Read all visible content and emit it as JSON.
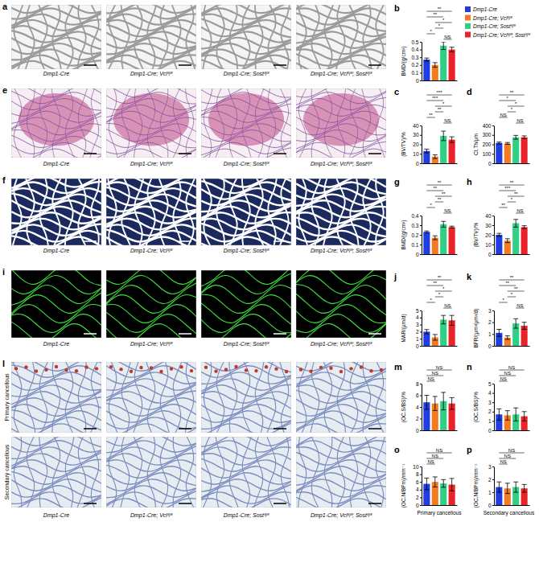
{
  "chart_data": [
    {
      "panel": "b",
      "type": "bar",
      "y_label": "BMD/(g/cm³)",
      "categories": [
        "Dmp1-Cre",
        "Dmp1-Cre; Vclᶠˡ/ᶠˡ",
        "Dmp1-Cre; Sostᶠˡ/ᶠˡ",
        "Dmp1-Cre; Vclᶠˡ/ᶠˡ; Sostᶠˡ/ᶠˡ"
      ],
      "legend": "right",
      "colors": [
        "#1f3de0",
        "#f47a20",
        "#2fcf86",
        "#e8242a"
      ],
      "values": [
        0.27,
        0.2,
        0.45,
        0.4
      ],
      "errors": [
        0.02,
        0.03,
        0.05,
        0.03
      ],
      "ylim": [
        0,
        0.5
      ],
      "yticks": [
        0,
        0.1,
        0.2,
        0.3,
        0.4,
        0.5
      ],
      "annotations": [
        {
          "between": [
            2,
            3
          ],
          "text": "NS"
        },
        {
          "between": [
            0,
            1
          ],
          "text": "*"
        },
        {
          "between": [
            1,
            2
          ],
          "text": "*"
        },
        {
          "between": [
            1,
            3
          ],
          "text": "*"
        },
        {
          "between": [
            0,
            2
          ],
          "text": "**"
        },
        {
          "between": [
            0,
            3
          ],
          "text": "**"
        }
      ]
    },
    {
      "panel": "c",
      "type": "bar",
      "y_label": "(BV/TV)/%",
      "categories": [
        null,
        null,
        null,
        null
      ],
      "colors": [
        "#1f3de0",
        "#f47a20",
        "#2fcf86",
        "#e8242a"
      ],
      "values": [
        13,
        7,
        29,
        25
      ],
      "errors": [
        2,
        2,
        5,
        3
      ],
      "ylim": [
        0,
        40
      ],
      "yticks": [
        0,
        10,
        20,
        30,
        40
      ],
      "annotations": [
        {
          "between": [
            2,
            3
          ],
          "text": "NS"
        },
        {
          "between": [
            0,
            1
          ],
          "text": "**"
        },
        {
          "between": [
            1,
            2
          ],
          "text": "**"
        },
        {
          "between": [
            1,
            3
          ],
          "text": "*"
        },
        {
          "between": [
            0,
            2
          ],
          "text": "***"
        },
        {
          "between": [
            0,
            3
          ],
          "text": "***"
        }
      ]
    },
    {
      "panel": "d",
      "type": "bar",
      "y_label": "Ct.Th/μm",
      "categories": [
        null,
        null,
        null,
        null
      ],
      "colors": [
        "#1f3de0",
        "#f47a20",
        "#2fcf86",
        "#e8242a"
      ],
      "values": [
        215,
        210,
        275,
        275
      ],
      "errors": [
        10,
        10,
        20,
        15
      ],
      "ylim": [
        0,
        400
      ],
      "yticks": [
        0,
        100,
        200,
        300,
        400
      ],
      "annotations": [
        {
          "between": [
            2,
            3
          ],
          "text": "NS"
        },
        {
          "between": [
            0,
            1
          ],
          "text": "NS"
        },
        {
          "between": [
            1,
            2
          ],
          "text": "*"
        },
        {
          "between": [
            1,
            3
          ],
          "text": "*"
        },
        {
          "between": [
            0,
            2
          ],
          "text": "*"
        },
        {
          "between": [
            0,
            3
          ],
          "text": "**"
        }
      ]
    },
    {
      "panel": "g",
      "type": "bar",
      "y_label": "BMD/(g/cm³)",
      "categories": [
        null,
        null,
        null,
        null
      ],
      "colors": [
        "#1f3de0",
        "#f47a20",
        "#2fcf86",
        "#e8242a"
      ],
      "values": [
        0.23,
        0.17,
        0.31,
        0.28
      ],
      "errors": [
        0.01,
        0.02,
        0.03,
        0.01
      ],
      "ylim": [
        0,
        0.4
      ],
      "yticks": [
        0,
        0.1,
        0.2,
        0.3,
        0.4
      ],
      "annotations": [
        {
          "between": [
            2,
            3
          ],
          "text": "NS"
        },
        {
          "between": [
            0,
            1
          ],
          "text": "*"
        },
        {
          "between": [
            1,
            2
          ],
          "text": "**"
        },
        {
          "between": [
            1,
            3
          ],
          "text": "**"
        },
        {
          "between": [
            0,
            2
          ],
          "text": "**"
        },
        {
          "between": [
            0,
            3
          ],
          "text": "**"
        }
      ]
    },
    {
      "panel": "h",
      "type": "bar",
      "y_label": "(BV/TV)/%",
      "categories": [
        null,
        null,
        null,
        null
      ],
      "colors": [
        "#1f3de0",
        "#f47a20",
        "#2fcf86",
        "#e8242a"
      ],
      "values": [
        20,
        14,
        32,
        28
      ],
      "errors": [
        1.5,
        2,
        4,
        1.5
      ],
      "ylim": [
        0,
        40
      ],
      "yticks": [
        0,
        10,
        20,
        30,
        40
      ],
      "annotations": [
        {
          "between": [
            2,
            3
          ],
          "text": "NS"
        },
        {
          "between": [
            0,
            1
          ],
          "text": "**"
        },
        {
          "between": [
            1,
            2
          ],
          "text": "*"
        },
        {
          "between": [
            1,
            3
          ],
          "text": "**"
        },
        {
          "between": [
            0,
            2
          ],
          "text": "***"
        },
        {
          "between": [
            0,
            3
          ],
          "text": "**"
        }
      ]
    },
    {
      "panel": "j",
      "type": "bar",
      "y_label": "MAR/(μm/d)",
      "categories": [
        null,
        null,
        null,
        null
      ],
      "colors": [
        "#1f3de0",
        "#f47a20",
        "#2fcf86",
        "#e8242a"
      ],
      "values": [
        2.0,
        1.2,
        3.7,
        3.6
      ],
      "errors": [
        0.3,
        0.4,
        0.6,
        0.7
      ],
      "ylim": [
        0,
        5
      ],
      "yticks": [
        0,
        1,
        2,
        3,
        4,
        5
      ],
      "annotations": [
        {
          "between": [
            2,
            3
          ],
          "text": "NS"
        },
        {
          "between": [
            0,
            1
          ],
          "text": "*"
        },
        {
          "between": [
            1,
            2
          ],
          "text": "*"
        },
        {
          "between": [
            1,
            3
          ],
          "text": "*"
        },
        {
          "between": [
            0,
            2
          ],
          "text": "**"
        },
        {
          "between": [
            0,
            3
          ],
          "text": "**"
        }
      ]
    },
    {
      "panel": "k",
      "type": "bar",
      "y_label": "BFR/(μm³/μm²/d)",
      "categories": [
        null,
        null,
        null,
        null
      ],
      "colors": [
        "#1f3de0",
        "#f47a20",
        "#2fcf86",
        "#e8242a"
      ],
      "values": [
        1.1,
        0.7,
        1.9,
        1.7
      ],
      "errors": [
        0.3,
        0.15,
        0.4,
        0.3
      ],
      "ylim": [
        0,
        3
      ],
      "yticks": [
        0,
        1,
        2,
        3
      ],
      "annotations": [
        {
          "between": [
            2,
            3
          ],
          "text": "NS"
        },
        {
          "between": [
            0,
            1
          ],
          "text": "*"
        },
        {
          "between": [
            1,
            2
          ],
          "text": "*"
        },
        {
          "between": [
            1,
            3
          ],
          "text": "**"
        },
        {
          "between": [
            0,
            2
          ],
          "text": "**"
        },
        {
          "between": [
            0,
            3
          ],
          "text": "**"
        }
      ]
    },
    {
      "panel": "m",
      "type": "bar",
      "y_label": "(OC.S/BS)/%",
      "categories": [
        null,
        null,
        null,
        null
      ],
      "colors": [
        "#1f3de0",
        "#f47a20",
        "#2fcf86",
        "#e8242a"
      ],
      "values": [
        4.8,
        4.6,
        5.0,
        4.6
      ],
      "errors": [
        1.2,
        1.2,
        1.5,
        1.0
      ],
      "ylim": [
        0,
        8
      ],
      "yticks": [
        0,
        2,
        4,
        6,
        8
      ],
      "annotations": [
        {
          "between": [
            0,
            1
          ],
          "text": "NS"
        },
        {
          "between": [
            0,
            2
          ],
          "text": "NS"
        },
        {
          "between": [
            0,
            3
          ],
          "text": "NS"
        }
      ]
    },
    {
      "panel": "n",
      "type": "bar",
      "y_label": "(OC.S/BS)/%",
      "categories": [
        null,
        null,
        null,
        null
      ],
      "colors": [
        "#1f3de0",
        "#f47a20",
        "#2fcf86",
        "#e8242a"
      ],
      "values": [
        1.7,
        1.6,
        1.7,
        1.5
      ],
      "errors": [
        0.6,
        0.5,
        0.7,
        0.5
      ],
      "ylim": [
        0,
        5
      ],
      "yticks": [
        0,
        1,
        2,
        3,
        4,
        5
      ],
      "annotations": [
        {
          "between": [
            0,
            1
          ],
          "text": "NS"
        },
        {
          "between": [
            0,
            2
          ],
          "text": "NS"
        },
        {
          "between": [
            0,
            3
          ],
          "text": "NS"
        }
      ]
    },
    {
      "panel": "o",
      "type": "bar",
      "y_label": "(OC.N/BPm)/mm⁻¹",
      "x_label": "Primary cancellous",
      "categories": [
        null,
        null,
        null,
        null
      ],
      "colors": [
        "#1f3de0",
        "#f47a20",
        "#2fcf86",
        "#e8242a"
      ],
      "values": [
        5.5,
        6.0,
        5.6,
        5.3
      ],
      "errors": [
        1.5,
        1.3,
        1.0,
        1.6
      ],
      "ylim": [
        0,
        10
      ],
      "yticks": [
        0,
        2,
        4,
        6,
        8,
        10
      ],
      "annotations": [
        {
          "between": [
            0,
            1
          ],
          "text": "NS"
        },
        {
          "between": [
            0,
            2
          ],
          "text": "NS"
        },
        {
          "between": [
            0,
            3
          ],
          "text": "NS"
        }
      ]
    },
    {
      "panel": "p",
      "type": "bar",
      "y_label": "(OC.N/BPm)/mm⁻¹",
      "x_label": "Secondary cancellous",
      "categories": [
        null,
        null,
        null,
        null
      ],
      "colors": [
        "#1f3de0",
        "#f47a20",
        "#2fcf86",
        "#e8242a"
      ],
      "values": [
        1.4,
        1.3,
        1.4,
        1.3
      ],
      "errors": [
        0.4,
        0.4,
        0.4,
        0.3
      ],
      "ylim": [
        0,
        3
      ],
      "yticks": [
        0,
        1,
        2,
        3
      ],
      "annotations": [
        {
          "between": [
            0,
            1
          ],
          "text": "NS"
        },
        {
          "between": [
            0,
            2
          ],
          "text": "NS"
        },
        {
          "between": [
            0,
            3
          ],
          "text": "NS"
        }
      ]
    }
  ],
  "image_panels": [
    {
      "panel": "a",
      "captions": [
        "Dmp1-Cre",
        "Dmp1-Cre; Vclᶠˡ/ᶠˡ",
        "Dmp1-Cre; Sostᶠˡ/ᶠˡ",
        "Dmp1-Cre; Vclᶠˡ/ᶠˡ; Sostᶠˡ/ᶠˡ"
      ]
    },
    {
      "panel": "e",
      "captions": [
        "Dmp1-Cre",
        "Dmp1-Cre; Vclᶠˡ/ᶠˡ",
        "Dmp1-Cre; Sostᶠˡ/ᶠˡ",
        "Dmp1-Cre; Vclᶠˡ/ᶠˡ; Sostᶠˡ/ᶠˡ"
      ]
    },
    {
      "panel": "f",
      "captions": [
        "Dmp1-Cre",
        "Dmp1-Cre; Vclᶠˡ/ᶠˡ",
        "Dmp1-Cre; Sostᶠˡ/ᶠˡ",
        "Dmp1-Cre; Vclᶠˡ/ᶠˡ; Sostᶠˡ/ᶠˡ"
      ]
    },
    {
      "panel": "i",
      "captions": [
        "Dmp1-Cre",
        "Dmp1-Cre; Vclᶠˡ/ᶠˡ",
        "Dmp1-Cre; Sostᶠˡ/ᶠˡ",
        "Dmp1-Cre; Vclᶠˡ/ᶠˡ; Sostᶠˡ/ᶠˡ"
      ]
    },
    {
      "panel": "l",
      "captions": [
        "Dmp1-Cre",
        "Dmp1-Cre; Vclᶠˡ/ᶠˡ",
        "Dmp1-Cre; Sostᶠˡ/ᶠˡ",
        "Dmp1-Cre; Vclᶠˡ/ᶠˡ; Sostᶠˡ/ᶠˡ"
      ],
      "row_labels": [
        "Primary cancellous",
        "Secondary cancellous"
      ]
    }
  ]
}
